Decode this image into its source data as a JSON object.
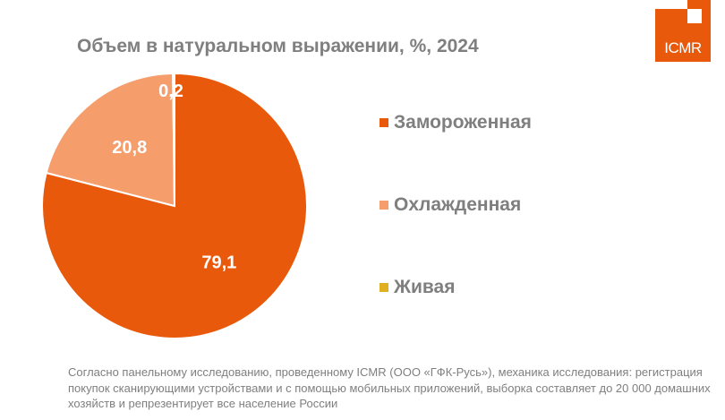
{
  "chart_data": {
    "type": "pie",
    "title": "Объем в натуральном выражении, %, 2024",
    "slices": [
      {
        "label": "Замороженная",
        "value": 79.1,
        "display": "79,1",
        "color": "#e8590c"
      },
      {
        "label": "Охлажденная",
        "value": 20.8,
        "display": "20,8",
        "color": "#f59d6b"
      },
      {
        "label": "Живая",
        "value": 0.2,
        "display": "0,2",
        "color": "#e0b020"
      }
    ],
    "legend_position": "right"
  },
  "logo": {
    "text": "ICMR",
    "color": "#e8590c"
  },
  "footnote": "Согласно панельному исследованию, проведенному ICMR (ООО «ГФК-Русь»), механика исследования: регистрация покупок сканирующими устройствами и с помощью мобильных приложений, выборка составляет до 20 000 домашних хозяйств и репрезентирует все население России"
}
